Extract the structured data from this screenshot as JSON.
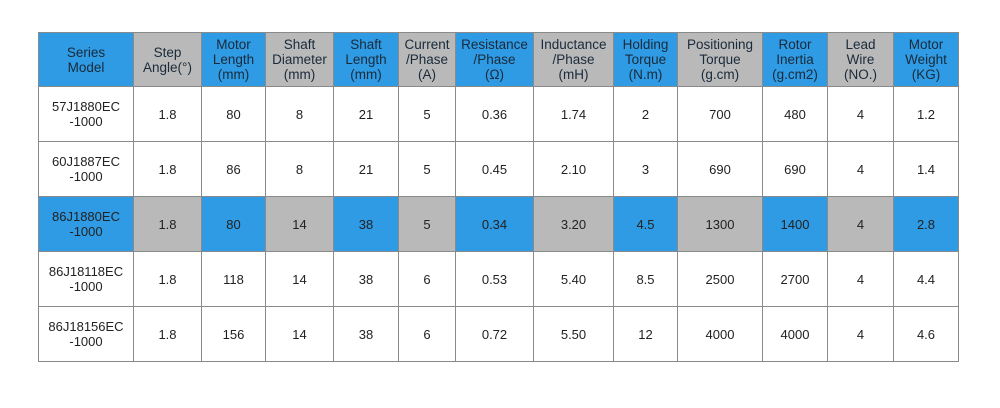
{
  "table": {
    "header": [
      [
        "Series",
        "Model"
      ],
      [
        "Step",
        "Angle(°)"
      ],
      [
        "Motor",
        "Length",
        "(mm)"
      ],
      [
        "Shaft",
        "Diameter",
        "(mm)"
      ],
      [
        "Shaft",
        "Length",
        "(mm)"
      ],
      [
        "Current",
        "/Phase",
        "(A)"
      ],
      [
        "Resistance",
        "/Phase",
        "(Ω)"
      ],
      [
        "Inductance",
        "/Phase",
        "(mH)"
      ],
      [
        "Holding",
        "Torque",
        "(N.m)"
      ],
      [
        "Positioning",
        "Torque",
        "(g.cm)"
      ],
      [
        "Rotor",
        "Inertia",
        "(g.cm2)"
      ],
      [
        "Lead",
        "Wire",
        "(NO.)"
      ],
      [
        "Motor",
        "Weight",
        "(KG)"
      ]
    ],
    "rows": [
      [
        [
          "57J1880EC",
          "-1000"
        ],
        "1.8",
        "80",
        "8",
        "21",
        "5",
        "0.36",
        "1.74",
        "2",
        "700",
        "480",
        "4",
        "1.2"
      ],
      [
        [
          "60J1887EC",
          "-1000"
        ],
        "1.8",
        "86",
        "8",
        "21",
        "5",
        "0.45",
        "2.10",
        "3",
        "690",
        "690",
        "4",
        "1.4"
      ],
      [
        [
          "86J1880EC",
          "-1000"
        ],
        "1.8",
        "80",
        "14",
        "38",
        "5",
        "0.34",
        "3.20",
        "4.5",
        "1300",
        "1400",
        "4",
        "2.8"
      ],
      [
        [
          "86J18118EC",
          "-1000"
        ],
        "1.8",
        "118",
        "14",
        "38",
        "6",
        "0.53",
        "5.40",
        "8.5",
        "2500",
        "2700",
        "4",
        "4.4"
      ],
      [
        [
          "86J18156EC",
          "-1000"
        ],
        "1.8",
        "156",
        "14",
        "38",
        "6",
        "0.72",
        "5.50",
        "12",
        "4000",
        "4000",
        "4",
        "4.6"
      ]
    ],
    "highlight_row": 2
  }
}
